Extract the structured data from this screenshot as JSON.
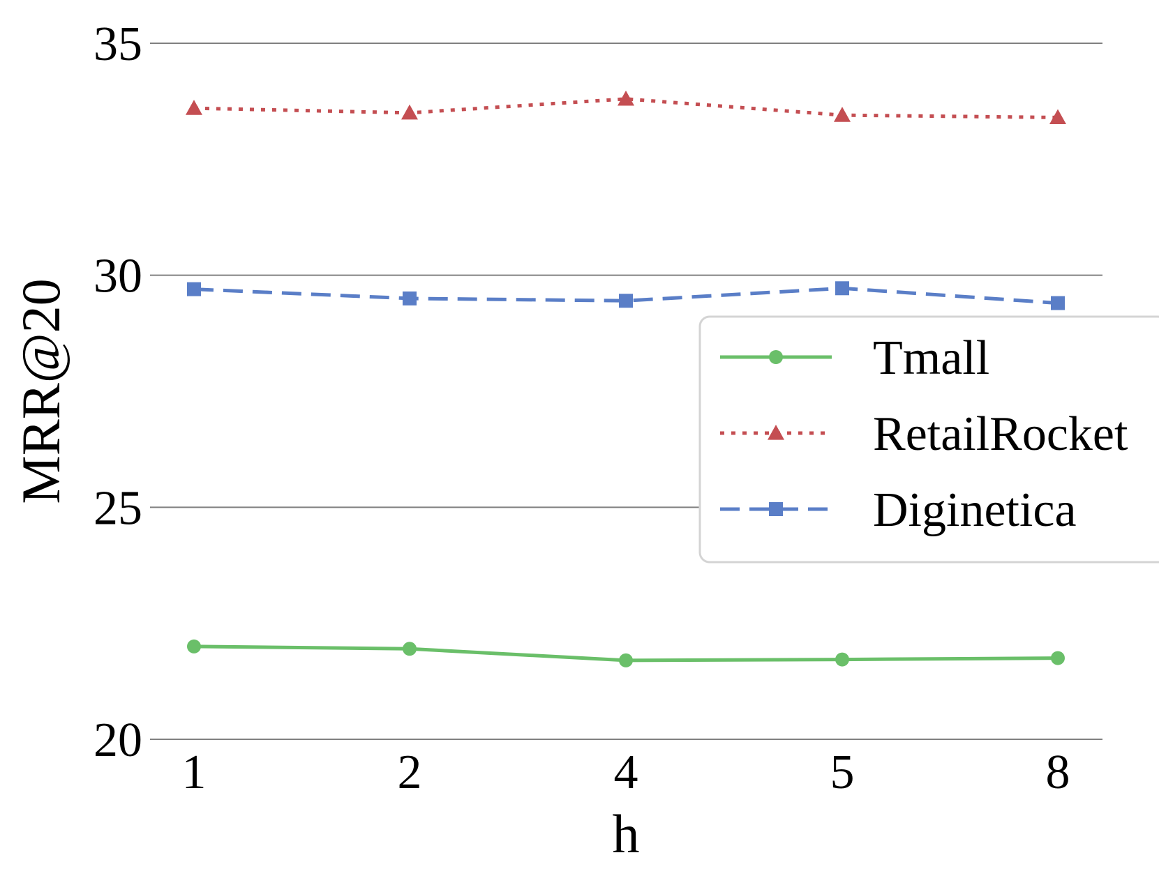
{
  "chart_data": {
    "type": "line",
    "categories": [
      "1",
      "2",
      "4",
      "5",
      "8"
    ],
    "xlabel": "h",
    "ylabel": "MRR@20",
    "ylim": [
      20,
      35
    ],
    "yticks": [
      "20",
      "25",
      "30",
      "35"
    ],
    "grid": "horizontal",
    "legend_placement": "right",
    "series": [
      {
        "name": "Tmall",
        "values": [
          22.0,
          21.95,
          21.7,
          21.72,
          21.75
        ],
        "color": "#6abf69",
        "style": "solid",
        "marker": "circle"
      },
      {
        "name": "RetailRocket",
        "values": [
          33.6,
          33.5,
          33.8,
          33.45,
          33.4
        ],
        "color": "#c44e52",
        "style": "dotted",
        "marker": "triangle"
      },
      {
        "name": "Diginetica",
        "values": [
          29.7,
          29.5,
          29.45,
          29.72,
          29.4
        ],
        "color": "#5a7ec7",
        "style": "dashed",
        "marker": "square"
      }
    ]
  }
}
